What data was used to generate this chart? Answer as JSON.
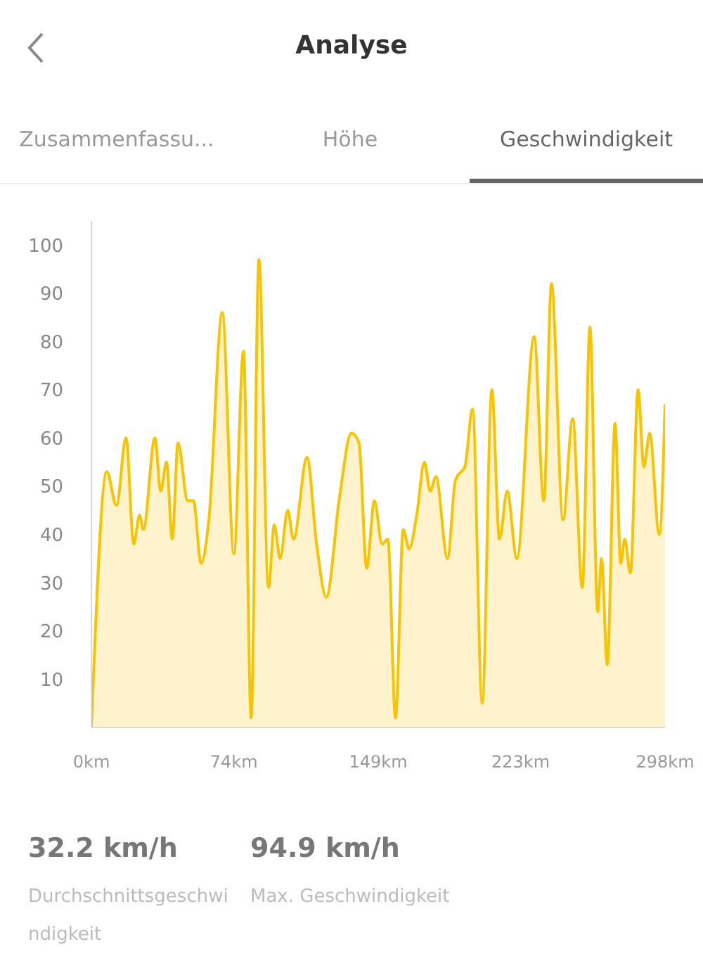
{
  "chart_data": {
    "type": "area",
    "title": "Analyse",
    "annotations": [
      "Zusammenfassu...",
      "Höhe",
      "Geschwindigkeit",
      "32.2 km/h",
      "Durchschnittsgeschwindigkeit",
      "94.9 km/h",
      "Max. Geschwindigkeit"
    ],
    "x": [
      0,
      8,
      13,
      18,
      22,
      25,
      27,
      33,
      36,
      39,
      42,
      45,
      50,
      53,
      57,
      61,
      68,
      74,
      79,
      83,
      87,
      92,
      95,
      98,
      102,
      105,
      112,
      117,
      122,
      129,
      135,
      139,
      143,
      147,
      151,
      154,
      158,
      162,
      165,
      169,
      173,
      176,
      179,
      185,
      189,
      190,
      194,
      198,
      203,
      208,
      212,
      216,
      221,
      230,
      235,
      239,
      245,
      250,
      255,
      259,
      263,
      265,
      268,
      272,
      275,
      277,
      280,
      284,
      287,
      290,
      295,
      298
    ],
    "values": [
      0,
      53,
      46,
      60,
      38,
      44,
      41,
      60,
      49,
      55,
      39,
      59,
      47,
      47,
      34,
      43,
      86,
      36,
      78,
      2,
      97,
      29,
      42,
      35,
      45,
      39,
      56,
      38,
      27,
      48,
      61,
      59,
      33,
      47,
      38,
      39,
      2,
      41,
      37,
      44,
      55,
      49,
      52,
      35,
      51,
      52,
      54,
      66,
      5,
      70,
      39,
      49,
      35,
      81,
      47,
      92,
      43,
      64,
      29,
      83,
      24,
      35,
      13,
      63,
      34,
      39,
      32,
      70,
      54,
      61,
      40,
      67
    ],
    "color": "#f8c300",
    "xlim": [
      0,
      298
    ],
    "xticks": [
      {
        "value": 0,
        "label": "0km"
      },
      {
        "value": 74,
        "label": "74km"
      },
      {
        "value": 149,
        "label": "149km"
      },
      {
        "value": 223,
        "label": "223km"
      },
      {
        "value": 298,
        "label": "298km"
      }
    ],
    "ylim": [
      0,
      105
    ],
    "yticks": [
      10,
      20,
      30,
      40,
      50,
      60,
      70,
      80,
      90,
      100
    ]
  }
}
